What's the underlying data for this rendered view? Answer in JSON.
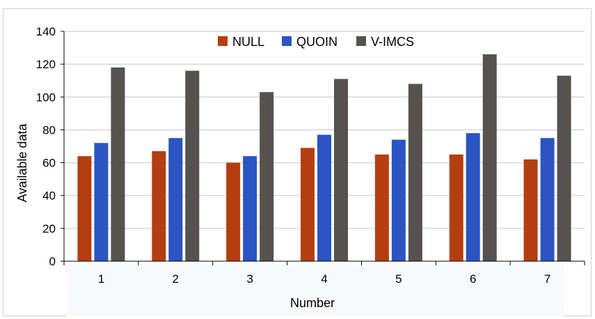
{
  "chart_data": {
    "type": "bar",
    "categories": [
      "1",
      "2",
      "3",
      "4",
      "5",
      "6",
      "7"
    ],
    "series": [
      {
        "name": "NULL",
        "color": "#B53E10",
        "values": [
          64,
          67,
          60,
          69,
          65,
          65,
          62
        ]
      },
      {
        "name": "QUOIN",
        "color": "#2A55C2",
        "values": [
          72,
          75,
          64,
          77,
          74,
          78,
          75
        ]
      },
      {
        "name": "V-IMCS",
        "color": "#555250",
        "values": [
          118,
          116,
          103,
          111,
          108,
          126,
          113
        ]
      }
    ],
    "title": "",
    "xlabel": "Number",
    "ylabel": "Available data",
    "ylim": [
      0,
      140
    ],
    "yticks": [
      0,
      20,
      40,
      60,
      80,
      100,
      120,
      140
    ],
    "grid": true,
    "legend_position": "top-center"
  }
}
